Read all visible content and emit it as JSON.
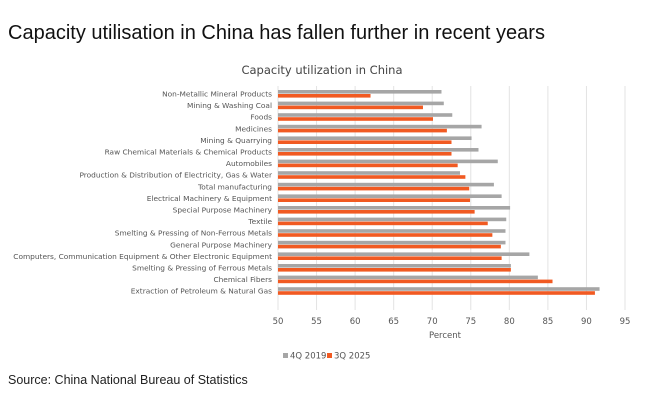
{
  "title": "Capacity utilisation in China has fallen further in recent years",
  "source": "Source: China National Bureau of Statistics",
  "chart_data": {
    "type": "bar",
    "orientation": "horizontal",
    "title": "Capacity utilization in China",
    "xlabel": "Percent",
    "ylabel": "",
    "xlim": [
      50,
      95
    ],
    "xticks": [
      50,
      55,
      60,
      65,
      70,
      75,
      80,
      85,
      90,
      95
    ],
    "grid": true,
    "legend": "bottom",
    "categories": [
      "Non-Metallic Mineral Products",
      "Mining & Washing Coal",
      "Foods",
      "Medicines",
      "Mining & Quarrying",
      "Raw Chemical Materials & Chemical Products",
      "Automobiles",
      "Production & Distribution of Electricity, Gas & Water",
      "Total manufacturing",
      "Electrical Machinery & Equipment",
      "Special Purpose Machinery",
      "Textile",
      "Smelting & Pressing of Non-Ferrous Metals",
      "General Purpose Machinery",
      "Computers, Communication Equipment & Other Electronic Equipment",
      "Smelting & Pressing of Ferrous Metals",
      "Chemical Fibers",
      "Extraction of Petroleum & Natural Gas"
    ],
    "series": [
      {
        "name": "4Q 2019",
        "color": "#a6a6a6",
        "values": [
          71.2,
          71.5,
          72.6,
          76.4,
          75.1,
          76.0,
          78.5,
          73.6,
          78.0,
          79.0,
          80.1,
          79.6,
          79.5,
          79.5,
          82.6,
          80.2,
          83.7,
          91.7
        ]
      },
      {
        "name": "3Q 2025",
        "color": "#f15a22",
        "values": [
          62.0,
          68.8,
          70.1,
          71.9,
          72.5,
          72.5,
          73.3,
          74.3,
          74.8,
          74.9,
          75.5,
          77.2,
          77.8,
          78.9,
          79.0,
          80.2,
          85.6,
          91.1
        ]
      }
    ]
  }
}
